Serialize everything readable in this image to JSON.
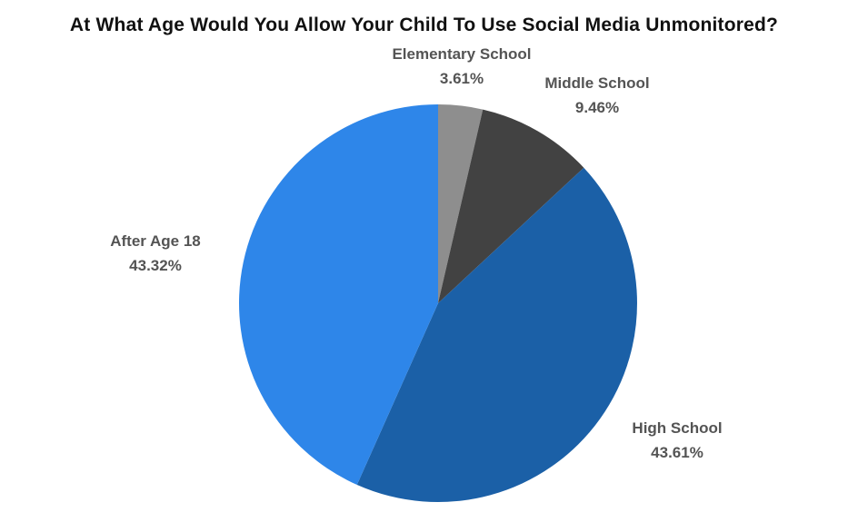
{
  "title": "At What Age Would You Allow Your Child To Use Social Media Unmonitored?",
  "chart_data": {
    "type": "pie",
    "title": "At What Age Would You Allow Your Child To Use Social Media Unmonitored?",
    "start_angle_deg": 0,
    "direction": "clockwise",
    "legend_position": "none",
    "labels_outside": true,
    "total_percent": 100,
    "slices": [
      {
        "label": "Elementary School",
        "value": 3.61,
        "display": "3.61%",
        "color": "#8e8e8e"
      },
      {
        "label": "Middle School",
        "value": 9.46,
        "display": "9.46%",
        "color": "#424242"
      },
      {
        "label": "High School",
        "value": 43.61,
        "display": "43.61%",
        "color": "#1b60a7"
      },
      {
        "label": "After Age 18",
        "value": 43.32,
        "display": "43.32%",
        "color": "#2e86e9"
      }
    ]
  }
}
